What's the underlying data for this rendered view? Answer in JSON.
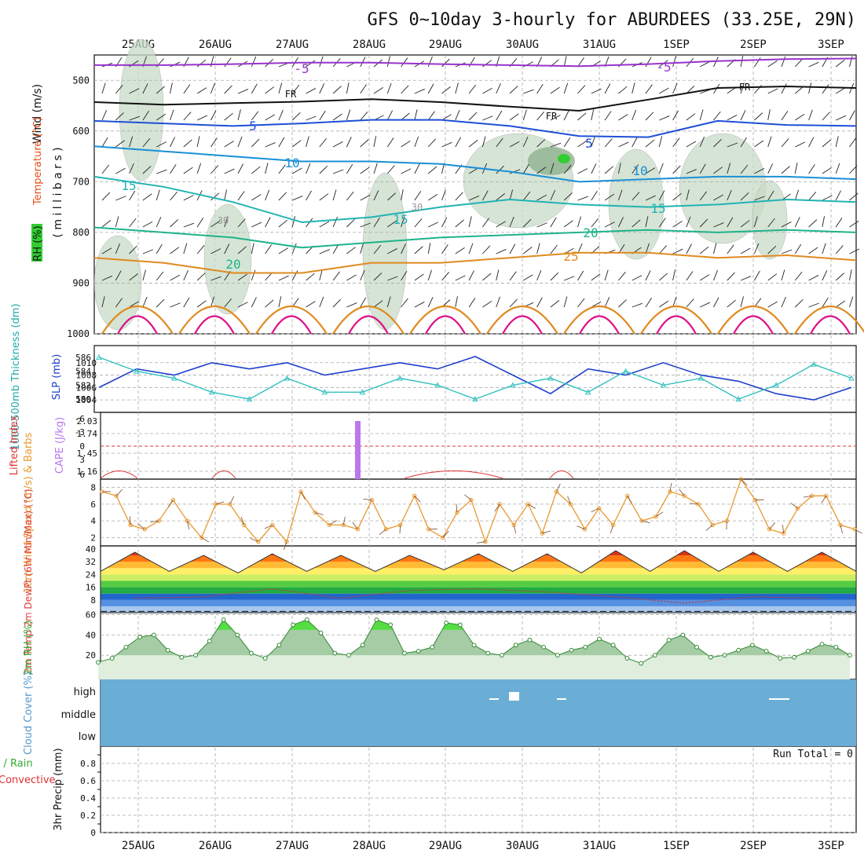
{
  "title": "GFS 0~10day 3-hourly for ABURDEES (33.25E, 29N)",
  "colors": {
    "grid": "#aaaaaa",
    "purple_iso": "#9933cc",
    "blue_iso": "#1f4fd6",
    "sky_iso": "#1a8fd6",
    "teal_iso": "#22b3b3",
    "green_iso": "#1fb38a",
    "orange_iso": "#e08a20",
    "magenta_iso": "#dd1188",
    "rh_fill": "#c8dcc8",
    "slp": "#1f3fcc",
    "thickness": "#33c0c0",
    "cape": "#bb77ee",
    "li": "#dd3333",
    "wind10": "#e89a30",
    "rh2m": "#33aa33",
    "cloud": "#6aaed6",
    "dewpt": "#cc3333"
  },
  "chart_data": [
    {
      "panel": "upper-air",
      "type": "line",
      "x_ticks": [
        "25AUG",
        "26AUG",
        "27AUG",
        "28AUG",
        "29AUG",
        "30AUG",
        "31AUG",
        "1SEP",
        "2SEP",
        "3SEP"
      ],
      "y_ticks": [
        "500",
        "600",
        "700",
        "800",
        "900",
        "1000"
      ],
      "ylabel_wind": "Wind (m/s)",
      "ylabel_temp": "Temperature (°C)",
      "ylabel_rh": "RH (%)",
      "ylabel_p": "( m i l l i b a r s )",
      "ylim": [
        1000,
        450
      ],
      "isotherm_labels": [
        "-5",
        "-5",
        "FR",
        "FR",
        "FR",
        "5",
        "5",
        "10",
        "10",
        "15",
        "15",
        "15",
        "20",
        "20",
        "25",
        "30",
        "30"
      ],
      "isotherms": [
        {
          "name": "-5",
          "color": "#9933cc",
          "pressure": [
            470,
            470,
            468,
            465,
            465,
            468,
            470,
            472,
            468,
            462,
            458,
            457
          ]
        },
        {
          "name": "FR",
          "color": "#111111",
          "pressure": [
            543,
            548,
            545,
            542,
            537,
            543,
            552,
            560,
            538,
            515,
            512,
            515
          ]
        },
        {
          "name": "5",
          "color": "#1f4fd6",
          "pressure": [
            580,
            585,
            590,
            585,
            578,
            578,
            590,
            610,
            612,
            580,
            588,
            590
          ]
        },
        {
          "name": "10",
          "color": "#1a8fd6",
          "pressure": [
            630,
            640,
            650,
            660,
            660,
            665,
            680,
            700,
            695,
            690,
            690,
            695
          ]
        },
        {
          "name": "15",
          "color": "#22b3b3",
          "pressure": [
            690,
            710,
            740,
            780,
            770,
            750,
            735,
            745,
            750,
            745,
            735,
            740
          ]
        },
        {
          "name": "20",
          "color": "#1fb38a",
          "pressure": [
            790,
            800,
            810,
            830,
            820,
            810,
            805,
            800,
            795,
            800,
            795,
            800
          ]
        },
        {
          "name": "25",
          "color": "#e08a20",
          "pressure": [
            850,
            860,
            880,
            880,
            860,
            860,
            850,
            840,
            840,
            850,
            845,
            855
          ]
        }
      ]
    },
    {
      "panel": "slp-thickness",
      "type": "line",
      "ylabel_thickness": "1000-500mb Thickness (dm)",
      "ylabel_slp": "SLP (mb)",
      "thickness_ticks": [
        "580",
        "582",
        "584",
        "586"
      ],
      "slp_ticks": [
        "1004",
        "1006",
        "1008",
        "1010"
      ],
      "slp": [
        1006,
        1009,
        1008,
        1010,
        1009,
        1010,
        1008,
        1009,
        1010,
        1009,
        1011,
        1008,
        1005,
        1009,
        1008,
        1010,
        1008,
        1007,
        1005,
        1004,
        1006
      ],
      "thickness": [
        586,
        584,
        583,
        581,
        580,
        583,
        581,
        581,
        583,
        582,
        580,
        582,
        583,
        581,
        584,
        582,
        583,
        580,
        582,
        585,
        583
      ]
    },
    {
      "panel": "cape-li",
      "type": "bar",
      "ylabel_li": "Lifted Index",
      "ylabel_cape": "CAPE (J/kg)",
      "li_ticks": [
        "-6",
        "-3",
        "0",
        "3",
        "6"
      ],
      "cape_ticks": [
        "2.03",
        "1.74",
        "1.45",
        "1.16"
      ],
      "cape_bar_day": 2.85,
      "cape_bar_value": 2.03
    },
    {
      "panel": "wind10m",
      "type": "line",
      "ylabel": "10m Wind Speed (m/s) & Barbs",
      "y_ticks": [
        "2",
        "4",
        "6",
        "8"
      ],
      "ylim": [
        1,
        9
      ],
      "values": [
        7.5,
        7,
        3.5,
        3,
        4,
        6.5,
        4,
        2,
        6,
        6,
        3.5,
        1.5,
        3.5,
        1.5,
        7.5,
        5,
        3.5,
        3.5,
        3,
        6.5,
        3,
        3.5,
        7,
        3,
        2,
        5,
        6.5,
        1.5,
        6,
        3.5,
        6,
        2.5,
        7.5,
        6,
        3,
        5.5,
        3.5,
        7,
        4,
        4.5,
        7.5,
        7,
        6,
        3.5,
        4,
        9,
        6.5,
        3,
        2.5,
        5.5,
        7,
        7,
        3.5,
        3
      ]
    },
    {
      "panel": "temp2m",
      "type": "area",
      "ylabel": "2m Temp 2m DewPt (6hr Min/Max) (°C)",
      "y_ticks": [
        "8",
        "16",
        "24",
        "32",
        "40"
      ],
      "ylim": [
        0,
        42
      ],
      "temp_max": [
        38,
        36,
        37,
        36,
        36,
        37,
        37,
        39,
        39,
        38,
        38
      ],
      "temp_min": [
        26,
        26,
        25,
        26,
        26,
        27,
        26,
        25,
        26,
        26,
        26
      ],
      "dewpt": [
        9,
        10,
        15,
        9,
        14,
        15,
        13,
        10,
        6,
        10,
        9
      ]
    },
    {
      "panel": "rh2m",
      "type": "area",
      "ylabel": "2m RH (%)",
      "y_ticks": [
        "20",
        "40",
        "60"
      ],
      "ylim": [
        0,
        62
      ],
      "values": [
        13,
        17,
        28,
        38,
        40,
        25,
        18,
        20,
        34,
        55,
        40,
        22,
        17,
        30,
        50,
        55,
        42,
        22,
        20,
        30,
        55,
        50,
        22,
        24,
        28,
        52,
        50,
        30,
        22,
        20,
        30,
        35,
        28,
        20,
        25,
        28,
        36,
        30,
        17,
        12,
        20,
        35,
        40,
        28,
        18,
        20,
        25,
        30,
        24,
        17,
        18,
        24,
        31,
        28,
        20
      ]
    },
    {
      "panel": "cloud",
      "type": "area",
      "ylabel": "Cloud Cover (%)",
      "y_ticks": [
        "high",
        "middle",
        "low"
      ]
    },
    {
      "panel": "precip",
      "type": "bar",
      "ylabel": "3hr Precip (mm)",
      "legend_total": "Total / Rain",
      "legend_conv": "Convective",
      "run_total": "Run Total = 0",
      "y_ticks": [
        "0",
        "0.2",
        "0.4",
        "0.6",
        "0.8"
      ],
      "ylim": [
        0,
        1
      ],
      "values": []
    }
  ]
}
